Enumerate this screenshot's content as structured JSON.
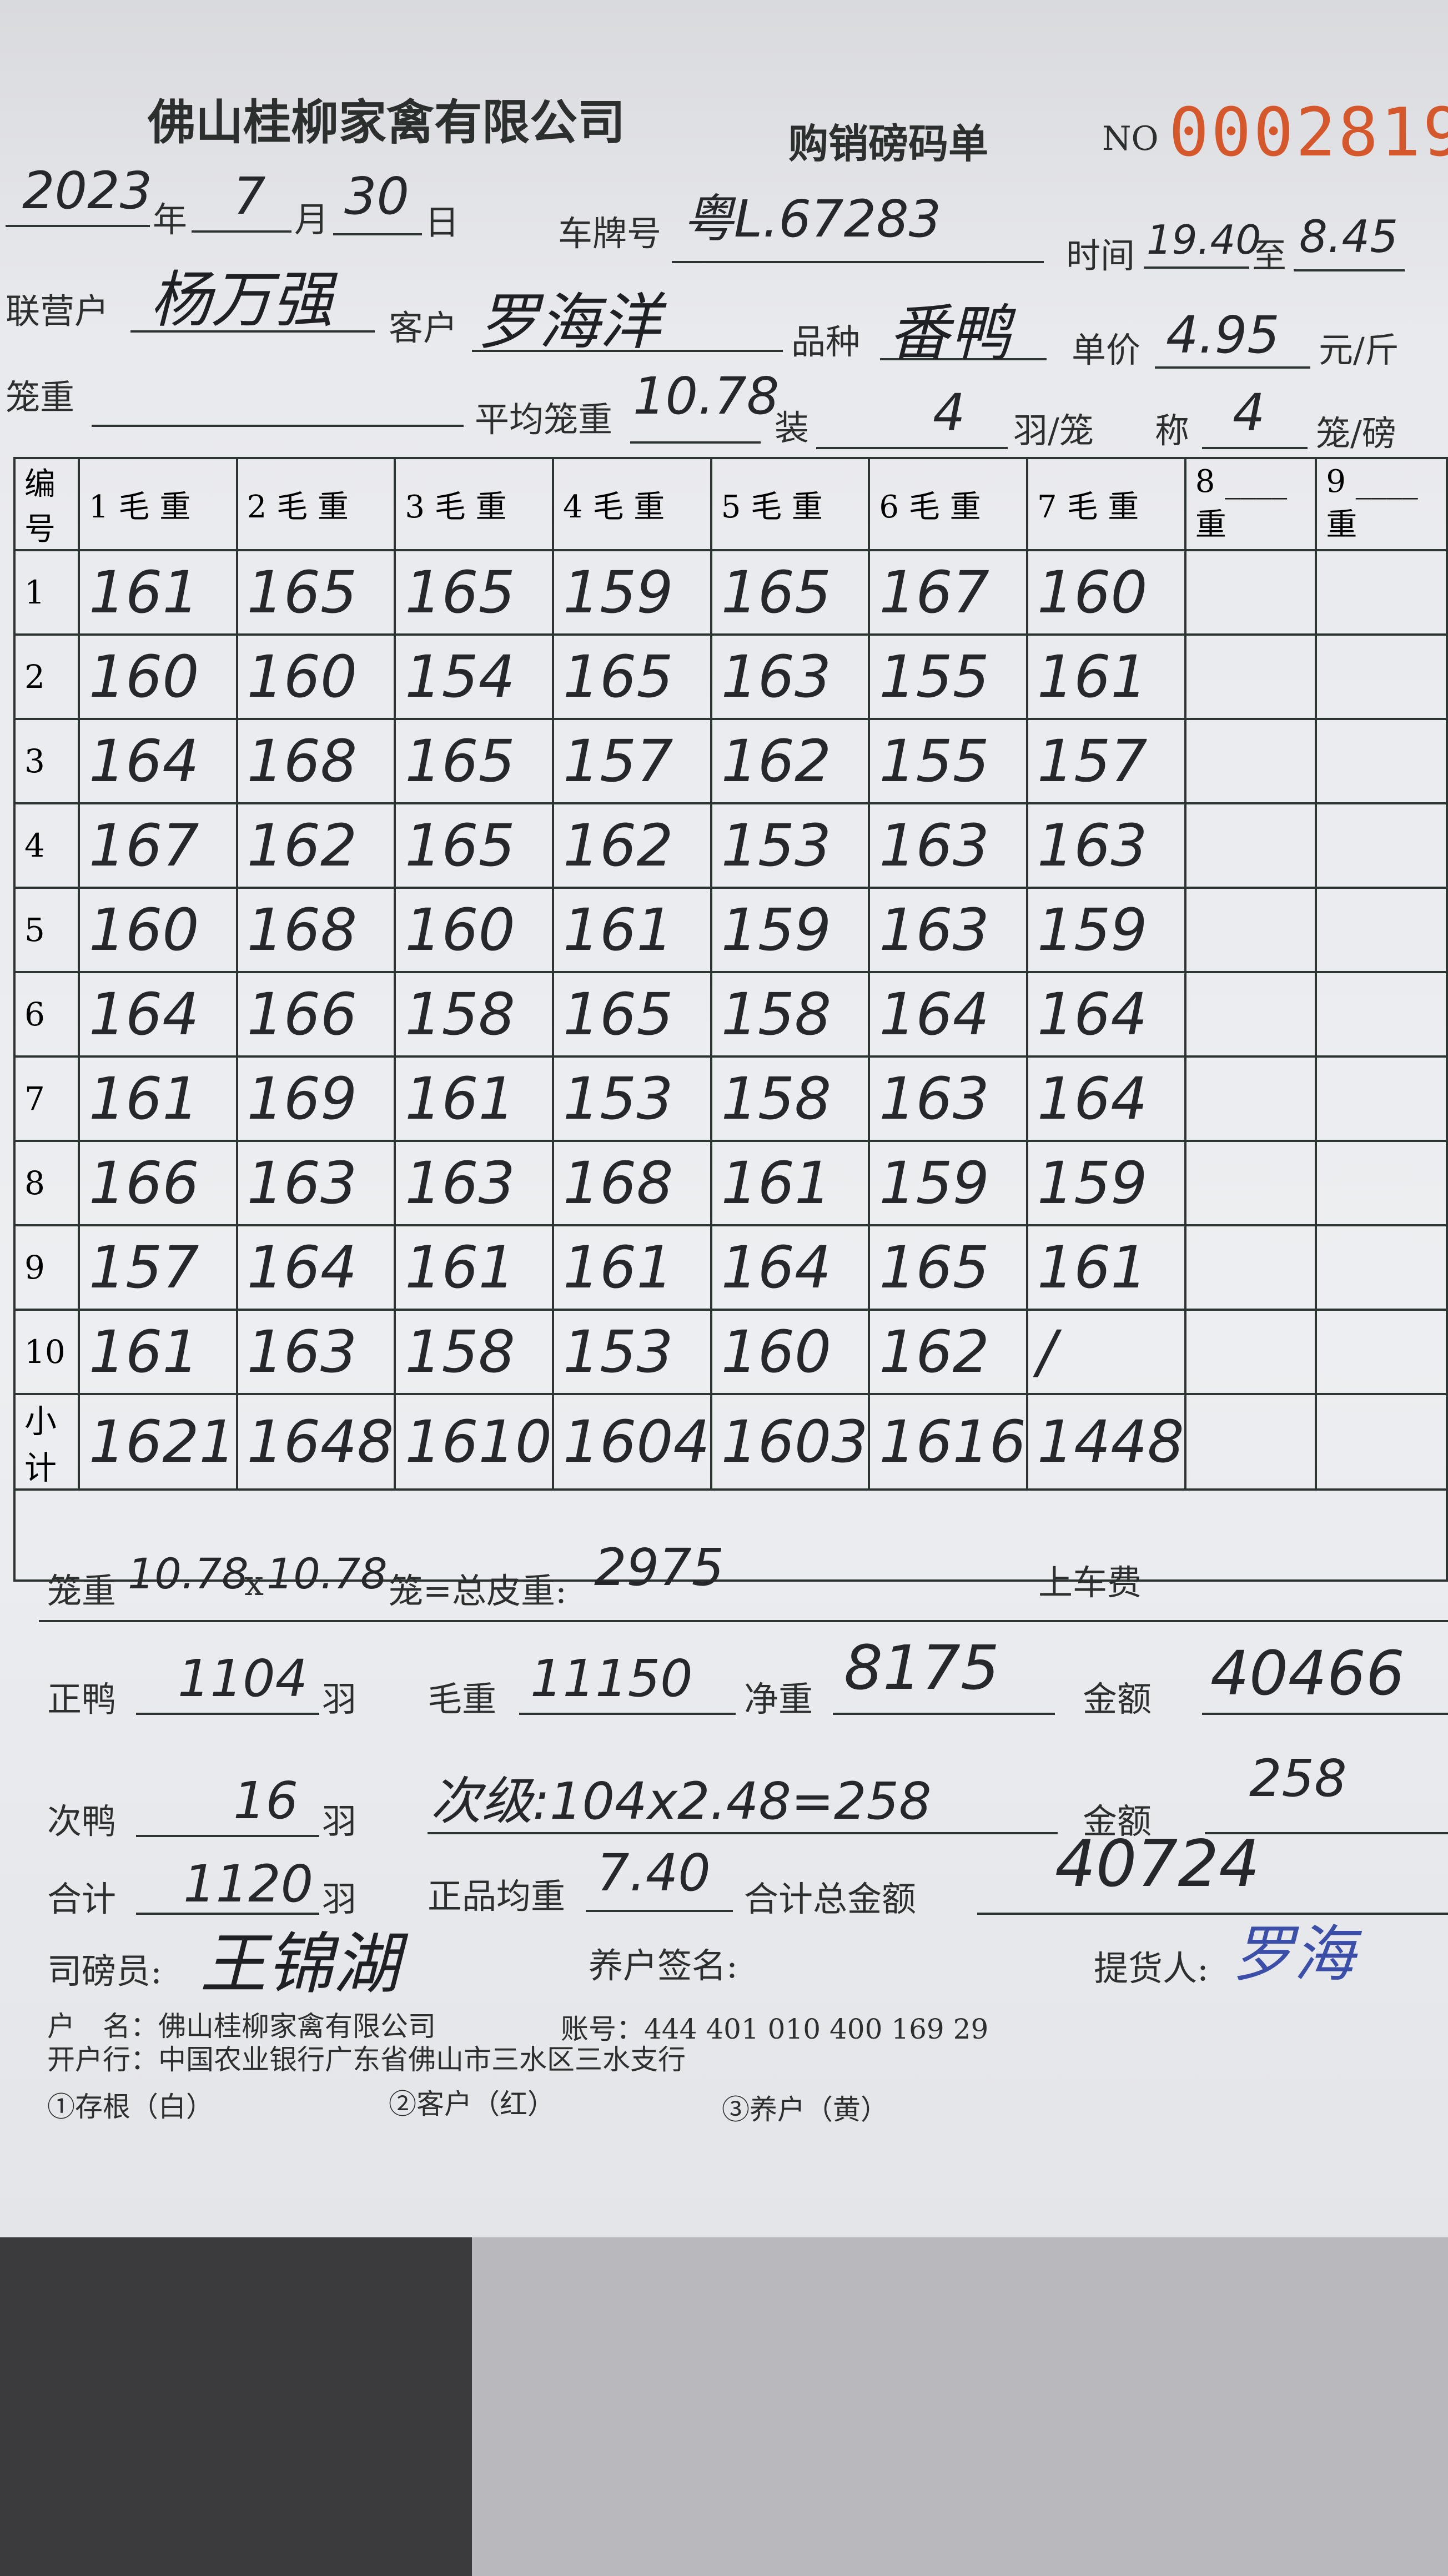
{
  "header": {
    "company": "佛山桂柳家禽有限公司",
    "form_name": "购销磅码单",
    "no_label": "NO",
    "serial": "0002819",
    "serial_color": "#d4582c"
  },
  "info": {
    "year": "2023",
    "year_label": "年",
    "month": "7",
    "month_label": "月",
    "day": "30",
    "day_label": "日",
    "plate_label": "车牌号",
    "plate": "粤L.67283",
    "time_label": "时间",
    "time_from": "19.40",
    "to_label": "至",
    "time_to": "8.45",
    "partner_label": "联营户",
    "partner": "杨万强",
    "customer_label": "客户",
    "customer": "罗海洋",
    "variety_label": "品种",
    "variety": "番鸭",
    "price_label": "单价",
    "price": "4.95",
    "price_unit": "元/斤",
    "cage_weight_label": "笼重",
    "avg_cage_label": "平均笼重",
    "avg_cage": "10.78",
    "load_label": "装",
    "load": "4",
    "load_unit": "羽/笼",
    "weigh_label": "称",
    "weigh": "4",
    "weigh_unit": "笼/磅"
  },
  "table": {
    "headers": [
      "编号",
      "1 毛 重",
      "2 毛 重",
      "3 毛 重",
      "4 毛 重",
      "5 毛 重",
      "6 毛 重",
      "7 毛 重",
      "8 ____重",
      "9 ____重"
    ],
    "rows": [
      {
        "idx": "1",
        "values": [
          "161",
          "165",
          "165",
          "159",
          "165",
          "167",
          "160",
          "",
          ""
        ]
      },
      {
        "idx": "2",
        "values": [
          "160",
          "160",
          "154",
          "165",
          "163",
          "155",
          "161",
          "",
          ""
        ]
      },
      {
        "idx": "3",
        "values": [
          "164",
          "168",
          "165",
          "157",
          "162",
          "155",
          "157",
          "",
          ""
        ]
      },
      {
        "idx": "4",
        "values": [
          "167",
          "162",
          "165",
          "162",
          "153",
          "163",
          "163",
          "",
          ""
        ]
      },
      {
        "idx": "5",
        "values": [
          "160",
          "168",
          "160",
          "161",
          "159",
          "163",
          "159",
          "",
          ""
        ]
      },
      {
        "idx": "6",
        "values": [
          "164",
          "166",
          "158",
          "165",
          "158",
          "164",
          "164",
          "",
          ""
        ]
      },
      {
        "idx": "7",
        "values": [
          "161",
          "169",
          "161",
          "153",
          "158",
          "163",
          "164",
          "",
          ""
        ]
      },
      {
        "idx": "8",
        "values": [
          "166",
          "163",
          "163",
          "168",
          "161",
          "159",
          "159",
          "",
          ""
        ]
      },
      {
        "idx": "9",
        "values": [
          "157",
          "164",
          "161",
          "161",
          "164",
          "165",
          "161",
          "",
          ""
        ]
      },
      {
        "idx": "10",
        "values": [
          "161",
          "163",
          "158",
          "153",
          "160",
          "162",
          "/",
          "",
          ""
        ]
      },
      {
        "idx": "小计",
        "values": [
          "1621",
          "1648",
          "1610",
          "1604",
          "1603",
          "1616",
          "1448",
          "",
          ""
        ]
      }
    ]
  },
  "summary": {
    "cage_label": "笼重",
    "cage_a": "10.78",
    "x": "x",
    "cage_b": "10.78",
    "eq_label": "笼=总皮重:",
    "tare": "2975",
    "loading_fee_label": "上车费",
    "main_duck_label": "正鸭",
    "main_duck": "1104",
    "unit_yu": "羽",
    "gross_label": "毛重",
    "gross": "11150",
    "net_label": "净重",
    "net": "8175",
    "amount_label": "金额",
    "amount": "40466",
    "second_duck_label": "次鸭",
    "second_duck": "16",
    "second_calc": "次级:104x2.48=258",
    "amount2": "258",
    "total_label": "合计",
    "total": "1120",
    "avg_label": "正品均重",
    "avg": "7.40",
    "total_amount_label": "合计总金额",
    "total_amount": "40724",
    "weigher_label": "司磅员:",
    "weigher_sig": "王锦湖",
    "farmer_sig_label": "养户签名:",
    "picker_label": "提货人:",
    "picker_sig": "罗海"
  },
  "footer": {
    "account_name": "户　名：佛山桂柳家禽有限公司",
    "account_no": "账号：444 401 010 400 169 29",
    "bank": "开户行：中国农业银行广东省佛山市三水区三水支行",
    "copy1": "①存根（白）",
    "copy2": "②客户（红）",
    "copy3": "③养户（黄）"
  }
}
